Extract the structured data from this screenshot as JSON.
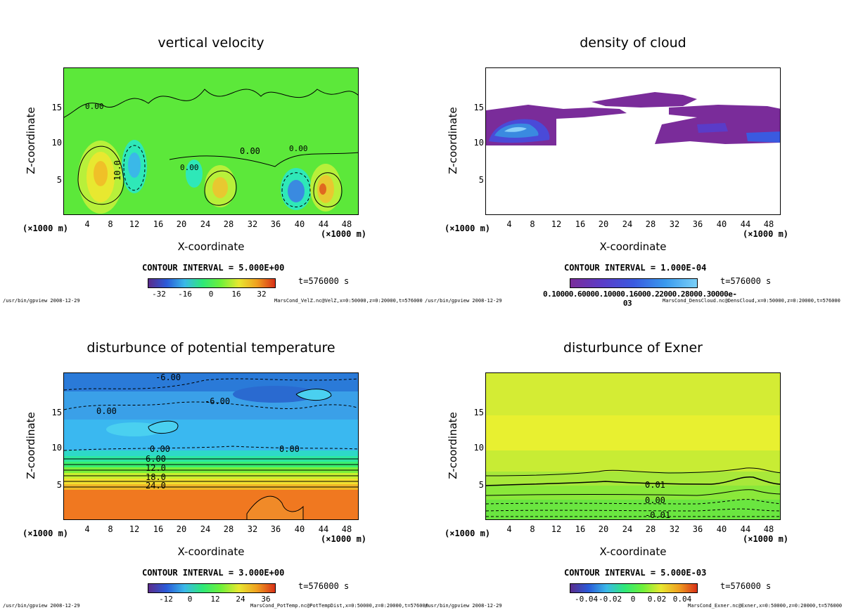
{
  "chart_data": [
    {
      "type": "heatmap",
      "title": "vertical velocity",
      "xlabel": "X-coordinate",
      "ylabel": "Z-coordinate",
      "x_unit_left": "(×1000 m)",
      "x_unit_right": "(×1000 m)",
      "xlim": [
        0,
        50
      ],
      "ylim": [
        0,
        20
      ],
      "xticks": [
        "4",
        "8",
        "12",
        "16",
        "20",
        "24",
        "28",
        "32",
        "36",
        "40",
        "44",
        "48"
      ],
      "yticks": [
        "5",
        "10",
        "15"
      ],
      "contour_interval": "CONTOUR INTERVAL = 5.000E+00",
      "time": "t=576000 s",
      "colorbar_ticks": [
        "-32",
        "-16",
        "0",
        "16",
        "32"
      ],
      "contour_labels": [
        "0.00",
        "10.0",
        "0.00",
        "0.00",
        "0.00"
      ],
      "footer_left": "/usr/bin/gpview  2008-12-29",
      "footer_right": "MarsCond_VelZ.nc@VelZ,x=0:50000,z=0:20000,t=576000",
      "cmap": [
        "#5a2c8c",
        "#2a5ad8",
        "#3ab8e8",
        "#2ee878",
        "#6ef03a",
        "#e8e830",
        "#f0a020",
        "#d83018"
      ]
    },
    {
      "type": "heatmap",
      "title": "density of cloud",
      "xlabel": "X-coordinate",
      "ylabel": "Z-coordinate",
      "x_unit_left": "(×1000 m)",
      "x_unit_right": "(×1000 m)",
      "xlim": [
        0,
        50
      ],
      "ylim": [
        0,
        20
      ],
      "xticks": [
        "4",
        "8",
        "12",
        "16",
        "20",
        "24",
        "28",
        "32",
        "36",
        "40",
        "44",
        "48"
      ],
      "yticks": [
        "5",
        "10",
        "15"
      ],
      "contour_interval": "CONTOUR INTERVAL = 1.000E-04",
      "time": "t=576000 s",
      "colorbar_ticks": [
        "0.10000.60000.10000.16000.22000.28000.30000e-03"
      ],
      "footer_left": "/usr/bin/gpview  2008-12-29",
      "footer_right": "MarsCond_DensCloud.nc@DensCloud,x=0:50000,z=0:20000,t=576000",
      "cmap": [
        "#7a2c9a",
        "#5a3cc8",
        "#3a5ae0",
        "#3a9aee",
        "#7ad0f8"
      ]
    },
    {
      "type": "heatmap",
      "title": "disturbunce of potential temperature",
      "xlabel": "X-coordinate",
      "ylabel": "Z-coordinate",
      "x_unit_left": "(×1000 m)",
      "x_unit_right": "(×1000 m)",
      "xlim": [
        0,
        50
      ],
      "ylim": [
        0,
        20
      ],
      "xticks": [
        "4",
        "8",
        "12",
        "16",
        "20",
        "24",
        "28",
        "32",
        "36",
        "40",
        "44",
        "48"
      ],
      "yticks": [
        "5",
        "10",
        "15"
      ],
      "contour_interval": "CONTOUR INTERVAL = 3.000E+00",
      "time": "t=576000 s",
      "colorbar_ticks": [
        "-12",
        "0",
        "12",
        "24",
        "36"
      ],
      "contour_labels": [
        "-6.00",
        "-6.00",
        "0.00",
        "0.00",
        "0.00",
        "6.00",
        "12.0",
        "18.0",
        "24.0"
      ],
      "footer_left": "/usr/bin/gpview  2008-12-29",
      "footer_right": "MarsCond_PotTemp.nc@PotTempDist,x=0:50000,z=0:20000,t=576000",
      "cmap": [
        "#5a2c8c",
        "#2a5ad8",
        "#3ab8e8",
        "#2ee878",
        "#6ef03a",
        "#e8e830",
        "#f0a020",
        "#d83018"
      ]
    },
    {
      "type": "heatmap",
      "title": "disturbunce of Exner",
      "xlabel": "X-coordinate",
      "ylabel": "Z-coordinate",
      "x_unit_left": "(×1000 m)",
      "x_unit_right": "(×1000 m)",
      "xlim": [
        0,
        50
      ],
      "ylim": [
        0,
        20
      ],
      "xticks": [
        "4",
        "8",
        "12",
        "16",
        "20",
        "24",
        "28",
        "32",
        "36",
        "40",
        "44",
        "48"
      ],
      "yticks": [
        "5",
        "10",
        "15"
      ],
      "contour_interval": "CONTOUR INTERVAL = 5.000E-03",
      "time": "t=576000 s",
      "colorbar_ticks": [
        "-0.04",
        "-0.02",
        "0",
        "0.02",
        "0.04"
      ],
      "contour_labels": [
        "0.01",
        "0.00",
        "-0.01"
      ],
      "footer_left": "/usr/bin/gpview  2008-12-29",
      "footer_right": "MarsCond_Exner.nc@Exner,x=0:50000,z=0:20000,t=576000",
      "cmap": [
        "#5a2c8c",
        "#2a5ad8",
        "#3ab8e8",
        "#2ee878",
        "#6ef03a",
        "#e8e830",
        "#f0a020",
        "#d83018"
      ]
    }
  ]
}
